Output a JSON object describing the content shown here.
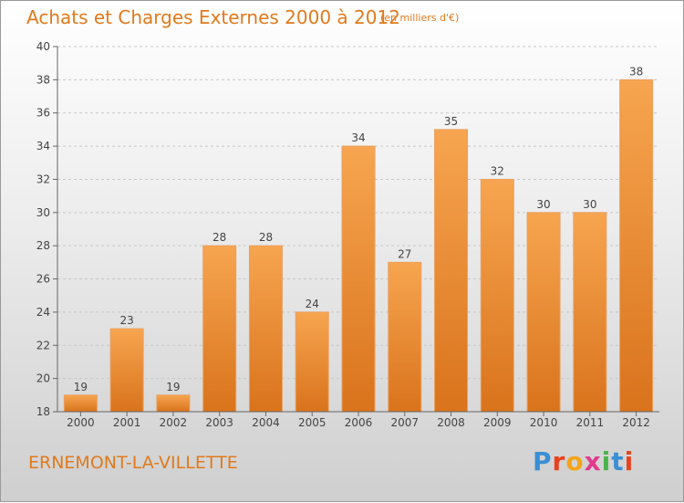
{
  "header": {
    "title": "Achats et Charges Externes 2000 à 2012",
    "subtitle": "(en milliers d'€)"
  },
  "footer": {
    "city": "ERNEMONT-LA-VILLETTE",
    "logo_letters": [
      {
        "ch": "P",
        "color": "#3b8fd4"
      },
      {
        "ch": "r",
        "color": "#e8431e"
      },
      {
        "ch": "o",
        "color": "#f2a51c"
      },
      {
        "ch": "x",
        "color": "#e23a8c"
      },
      {
        "ch": "i",
        "color": "#4bb24b"
      },
      {
        "ch": "t",
        "color": "#3b8fd4"
      },
      {
        "ch": "i",
        "color": "#e8431e"
      }
    ]
  },
  "colors": {
    "bar_top": "#f7a550",
    "bar_bottom": "#d9731c",
    "text_accent": "#e07a1c"
  },
  "chart_data": {
    "type": "bar",
    "title": "Achats et Charges Externes 2000 à 2012",
    "xlabel": "",
    "ylabel": "",
    "categories": [
      "2000",
      "2001",
      "2002",
      "2003",
      "2004",
      "2005",
      "2006",
      "2007",
      "2008",
      "2009",
      "2010",
      "2011",
      "2012"
    ],
    "values": [
      19,
      23,
      19,
      28,
      28,
      24,
      34,
      27,
      35,
      32,
      30,
      30,
      38
    ],
    "ylim": [
      18,
      40
    ],
    "yticks": [
      18,
      20,
      22,
      24,
      26,
      28,
      30,
      32,
      34,
      36,
      38,
      40
    ],
    "grid": true,
    "legend": "none"
  }
}
